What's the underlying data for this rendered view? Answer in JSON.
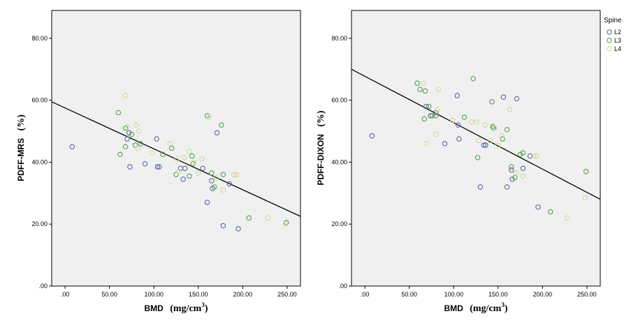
{
  "chart_data": [
    {
      "type": "scatter",
      "xlabel": "BMD",
      "xunit": "(mg/cm",
      "xunit_sup": "3",
      "xunit_close": ")",
      "ylabel": "PDFF-MRS",
      "yunit": "(%)",
      "xlim": [
        -15,
        265
      ],
      "ylim": [
        0,
        89
      ],
      "x_ticks": [
        ".00",
        "50.00",
        "100.00",
        "150.00",
        "200.00",
        "250.00"
      ],
      "y_ticks": [
        ".00",
        "20.00",
        "40.00",
        "60.00",
        "80.00"
      ],
      "grid": false,
      "fit_line": {
        "x": [
          -15,
          265
        ],
        "y": [
          59.5,
          22.5
        ]
      },
      "series": [
        {
          "name": "L2",
          "color": "#5a66a8",
          "points": [
            [
              8,
              45
            ],
            [
              70,
              47.5
            ],
            [
              72,
              49.5
            ],
            [
              73,
              38.5
            ],
            [
              90,
              39.5
            ],
            [
              103,
              47.5
            ],
            [
              104,
              38.5
            ],
            [
              106,
              38.5
            ],
            [
              130,
              38
            ],
            [
              133,
              34.5
            ],
            [
              135,
              38
            ],
            [
              155,
              38
            ],
            [
              160,
              27
            ],
            [
              165,
              34
            ],
            [
              166,
              31.5
            ],
            [
              171,
              49.5
            ],
            [
              178,
              19.5
            ],
            [
              185,
              33
            ],
            [
              195,
              18.5
            ]
          ]
        },
        {
          "name": "L3",
          "color": "#52a24a",
          "points": [
            [
              60,
              56
            ],
            [
              62,
              42.5
            ],
            [
              68,
              45
            ],
            [
              68,
              51
            ],
            [
              75,
              49
            ],
            [
              79,
              45.5
            ],
            [
              85,
              46
            ],
            [
              110,
              42.5
            ],
            [
              120,
              44.5
            ],
            [
              125,
              36
            ],
            [
              140,
              35.5
            ],
            [
              143,
              42
            ],
            [
              144,
              39.5
            ],
            [
              160,
              55
            ],
            [
              165,
              36.5
            ],
            [
              168,
              32
            ],
            [
              176,
              52
            ],
            [
              178,
              36
            ],
            [
              207,
              22
            ],
            [
              249,
              20.5
            ]
          ]
        },
        {
          "name": "L4",
          "color": "#d3d8a0",
          "points": [
            [
              68,
              61.5
            ],
            [
              70,
              51.5
            ],
            [
              80,
              52
            ],
            [
              82,
              44.5
            ],
            [
              83,
              50
            ],
            [
              98,
              43
            ],
            [
              118,
              46
            ],
            [
              126,
              41
            ],
            [
              128,
              37
            ],
            [
              134,
              41.5
            ],
            [
              140,
              43.5
            ],
            [
              145,
              40
            ],
            [
              150,
              36.5
            ],
            [
              154,
              41
            ],
            [
              162,
              54.5
            ],
            [
              170,
              35
            ],
            [
              178,
              31
            ],
            [
              190,
              36
            ],
            [
              193,
              36
            ],
            [
              228,
              22
            ],
            [
              248,
              20
            ]
          ]
        }
      ]
    },
    {
      "type": "scatter",
      "xlabel": "BMD",
      "xunit": "(mg/cm",
      "xunit_sup": "3",
      "xunit_close": ")",
      "ylabel": "PDFF-DIXON",
      "yunit": "(%)",
      "xlim": [
        -15,
        265
      ],
      "ylim": [
        0,
        89
      ],
      "x_ticks": [
        ".00",
        "50.00",
        "100.00",
        "150.00",
        "200.00",
        "250.00"
      ],
      "y_ticks": [
        ".00",
        "20.00",
        "40.00",
        "60.00",
        "80.00"
      ],
      "grid": false,
      "legend": {
        "title": "Spine",
        "position": "outside-top-right"
      },
      "fit_line": {
        "x": [
          -15,
          265
        ],
        "y": [
          70,
          28
        ]
      },
      "series": [
        {
          "name": "L2",
          "color": "#5a66a8",
          "points": [
            [
              8,
              48.5
            ],
            [
              69,
              58
            ],
            [
              74,
              55
            ],
            [
              80,
              56
            ],
            [
              90,
              46
            ],
            [
              104,
              61.5
            ],
            [
              105,
              52
            ],
            [
              106,
              47.5
            ],
            [
              130,
              32
            ],
            [
              134,
              45.5
            ],
            [
              136,
              45.5
            ],
            [
              156,
              61
            ],
            [
              160,
              32
            ],
            [
              165,
              37.5
            ],
            [
              166,
              34.5
            ],
            [
              171,
              60.5
            ],
            [
              178,
              38
            ],
            [
              186,
              42
            ],
            [
              195,
              25.5
            ]
          ]
        },
        {
          "name": "L3",
          "color": "#52a24a",
          "points": [
            [
              59,
              65.5
            ],
            [
              62,
              63.5
            ],
            [
              67,
              54
            ],
            [
              68,
              63
            ],
            [
              72,
              58
            ],
            [
              76,
              55
            ],
            [
              80,
              55
            ],
            [
              112,
              54.5
            ],
            [
              122,
              67
            ],
            [
              127,
              41.5
            ],
            [
              143,
              59.5
            ],
            [
              144,
              51.5
            ],
            [
              145,
              51
            ],
            [
              155,
              47.5
            ],
            [
              160,
              50.5
            ],
            [
              165,
              38.5
            ],
            [
              169,
              35
            ],
            [
              175,
              42.5
            ],
            [
              178,
              43
            ],
            [
              209,
              24
            ],
            [
              249,
              37
            ]
          ]
        },
        {
          "name": "L4",
          "color": "#d3d8a0",
          "points": [
            [
              66,
              65.5
            ],
            [
              69,
              46
            ],
            [
              80,
              49
            ],
            [
              82,
              57
            ],
            [
              83,
              63.5
            ],
            [
              99,
              53.5
            ],
            [
              120,
              53
            ],
            [
              126,
              53
            ],
            [
              128,
              47
            ],
            [
              135,
              52
            ],
            [
              141,
              47
            ],
            [
              146,
              51
            ],
            [
              150,
              45.5
            ],
            [
              154,
              48.5
            ],
            [
              163,
              57
            ],
            [
              170,
              36.5
            ],
            [
              178,
              35.5
            ],
            [
              190,
              42
            ],
            [
              193,
              42
            ],
            [
              228,
              22
            ],
            [
              248,
              28.5
            ]
          ]
        }
      ]
    }
  ]
}
